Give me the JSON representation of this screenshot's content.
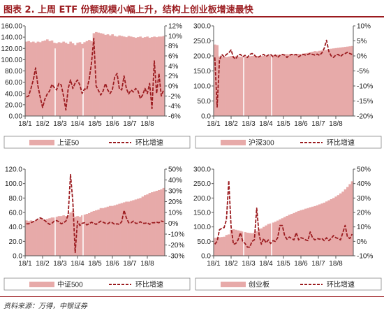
{
  "figure_title": "图表 2. 上周 ETF 份额规模小幅上升，结构上创业板增速最快",
  "source": "资料来源：万得，中银证券",
  "colors": {
    "bar": "#e7aaa9",
    "line": "#9b1b1f",
    "title": "#9b1b1f",
    "axis": "#555555"
  },
  "chart_data": [
    {
      "type": "bar",
      "x_ticks": [
        "18/1",
        "18/2",
        "18/3",
        "18/4",
        "18/5",
        "18/6",
        "18/7",
        "18/8"
      ],
      "ylim_left": [
        0,
        160
      ],
      "ylim_right": [
        -6,
        12
      ],
      "left_ticks": [
        "0.00",
        "20.00",
        "40.00",
        "60.00",
        "80.00",
        "100.00",
        "120.00",
        "140.00",
        "160.00"
      ],
      "right_ticks": [
        "-6%",
        "-4%",
        "-2%",
        "0%",
        "2%",
        "4%",
        "6%",
        "8%",
        "10%",
        "12%"
      ],
      "series": [
        {
          "name": "上证50",
          "type": "bar",
          "values": [
            132,
            133,
            131,
            132,
            130,
            132,
            131,
            133,
            134,
            136,
            133,
            134,
            130,
            129,
            131,
            130,
            132,
            130,
            128,
            132,
            129,
            126,
            130,
            131,
            128,
            131,
            133,
            135,
            133,
            147,
            149,
            148,
            147,
            146,
            144,
            145,
            143,
            145,
            142,
            141,
            143,
            142,
            141,
            140,
            142,
            141,
            140,
            139,
            140,
            141,
            139,
            140,
            141,
            139,
            140,
            141,
            140,
            141,
            141,
            142
          ]
        },
        {
          "name": "环比增速",
          "type": "line",
          "values": [
            -2.2,
            -2.0,
            -0.5,
            1.2,
            3.6,
            0.0,
            -2.3,
            -4.3,
            -2.6,
            -1.6,
            -1.0,
            0.3,
            -0.3,
            -0.8,
            0.5,
            0.2,
            -2.0,
            -4.8,
            -0.5,
            1.2,
            -0.5,
            0.6,
            1.2,
            0.2,
            -1.5,
            -0.6,
            -0.7,
            1.3,
            4.5,
            9.5,
            0.0,
            -0.9,
            -1.8,
            -1.0,
            0.5,
            -0.8,
            -1.5,
            -0.7,
            1.8,
            2.5,
            -0.6,
            -0.8,
            2.0,
            -0.5,
            -1.6,
            -0.8,
            -1.2,
            -0.5,
            -1.0,
            -2.5,
            -1.8,
            -0.5,
            -1.5,
            0.5,
            -4.5,
            5.0,
            -1.5,
            2.5,
            -2.0,
            -0.8
          ]
        }
      ]
    },
    {
      "type": "bar",
      "x_ticks": [
        "18/1",
        "18/2",
        "18/3",
        "18/4",
        "18/5",
        "18/6",
        "18/7",
        "18/8"
      ],
      "ylim_left": [
        0,
        300
      ],
      "ylim_right": [
        -20,
        10
      ],
      "left_ticks": [
        "0.0",
        "50.0",
        "100.0",
        "150.0",
        "200.0",
        "250.0",
        "300.0"
      ],
      "right_ticks": [
        "-20%",
        "-15%",
        "-10%",
        "-5%",
        "0%",
        "5%",
        "10%"
      ],
      "series": [
        {
          "name": "沪深300",
          "type": "bar",
          "values": [
            238,
            236,
            198,
            196,
            197,
            196,
            198,
            200,
            197,
            199,
            198,
            197,
            196,
            198,
            197,
            199,
            200,
            201,
            200,
            198,
            199,
            200,
            201,
            200,
            202,
            203,
            202,
            204,
            203,
            204,
            205,
            206,
            205,
            204,
            206,
            205,
            207,
            206,
            208,
            209,
            210,
            212,
            214,
            216,
            215,
            217,
            218,
            219,
            220,
            222,
            224,
            225,
            226,
            227,
            228,
            229,
            230,
            231,
            232,
            233
          ]
        },
        {
          "name": "环比增速",
          "type": "line",
          "values": [
            -0.5,
            -17.0,
            -1.5,
            0.5,
            -0.3,
            0.5,
            1.0,
            2.0,
            -0.5,
            -1.0,
            0.3,
            0.5,
            -0.3,
            0.2,
            -0.5,
            0.5,
            0.8,
            0.3,
            -0.5,
            -0.3,
            0.2,
            0.5,
            -0.2,
            0.3,
            0.5,
            -0.3,
            0.3,
            -0.5,
            0.2,
            0.5,
            0.3,
            -0.5,
            0.2,
            0.5,
            0.3,
            0.5,
            -0.3,
            0.2,
            0.5,
            0.3,
            0.5,
            0.8,
            0.5,
            0.3,
            0.6,
            0.2,
            1.0,
            2.5,
            5.2,
            1.5,
            0.0,
            -0.5,
            0.3,
            0.5,
            -0.2,
            0.5,
            0.8,
            1.2,
            0.8,
            0.5
          ]
        }
      ]
    },
    {
      "type": "bar",
      "x_ticks": [
        "18/1",
        "18/2",
        "18/3",
        "18/4",
        "18/5",
        "18/6",
        "18/7",
        "18/8"
      ],
      "ylim_left": [
        0,
        120
      ],
      "ylim_right": [
        -30,
        50
      ],
      "left_ticks": [
        "0.0",
        "20.0",
        "40.0",
        "60.0",
        "80.0",
        "100.0",
        "120.0"
      ],
      "right_ticks": [
        "-30%",
        "-20%",
        "-10%",
        "0%",
        "10%",
        "20%",
        "30%",
        "40%",
        "50%"
      ],
      "series": [
        {
          "name": "中证500",
          "type": "bar",
          "values": [
            49,
            48,
            49,
            48,
            49,
            50,
            51,
            51,
            50,
            51,
            52,
            53,
            53,
            54,
            55,
            55,
            56,
            55,
            56,
            60,
            62,
            54,
            55,
            54,
            56,
            57,
            58,
            59,
            61,
            62,
            63,
            64,
            66,
            66,
            67,
            68,
            69,
            69,
            70,
            71,
            72,
            73,
            74,
            75,
            75,
            76,
            77,
            78,
            79,
            80,
            82,
            84,
            85,
            87,
            88,
            89,
            90,
            91,
            92,
            94
          ]
        },
        {
          "name": "环比增速",
          "type": "line",
          "values": [
            -0.5,
            -0.5,
            0.5,
            1.5,
            2.5,
            4.0,
            5.0,
            4.0,
            2.5,
            0.5,
            -1.0,
            0.0,
            2.0,
            2.5,
            1.5,
            -0.5,
            0.5,
            2.0,
            8.0,
            45.0,
            20.0,
            -27.0,
            2.0,
            -2.0,
            0.0,
            0.5,
            -1.5,
            -0.5,
            1.0,
            0.0,
            -1.0,
            0.5,
            2.0,
            1.0,
            0.0,
            -0.5,
            1.0,
            0.5,
            -1.0,
            -0.5,
            -1.0,
            1.5,
            12.0,
            5.0,
            0.5,
            0.5,
            2.0,
            0.0,
            0.0,
            1.5,
            0.0,
            0.0,
            0.5,
            -1.0,
            0.5,
            0.5,
            1.0,
            0.5,
            2.0,
            1.5
          ]
        }
      ]
    },
    {
      "type": "bar",
      "x_ticks": [
        "18/1",
        "18/2",
        "18/3",
        "18/4",
        "18/5",
        "18/6",
        "18/7",
        "18/8"
      ],
      "ylim_left": [
        0,
        300
      ],
      "ylim_right": [
        -10,
        50
      ],
      "left_ticks": [
        "0.0",
        "50.0",
        "100.0",
        "150.0",
        "200.0",
        "250.0",
        "300.0"
      ],
      "right_ticks": [
        "-10%",
        "0%",
        "10%",
        "20%",
        "30%",
        "40%",
        "50%"
      ],
      "series": [
        {
          "name": "创业板",
          "type": "bar",
          "values": [
            62,
            63,
            64,
            65,
            66,
            72,
            74,
            90,
            92,
            90,
            88,
            86,
            84,
            82,
            80,
            79,
            78,
            80,
            85,
            92,
            95,
            100,
            105,
            110,
            112,
            115,
            118,
            122,
            126,
            130,
            134,
            138,
            142,
            145,
            148,
            152,
            155,
            158,
            160,
            163,
            165,
            168,
            170,
            172,
            175,
            178,
            181,
            184,
            188,
            192,
            196,
            200,
            205,
            210,
            216,
            222,
            230,
            238,
            248,
            258
          ]
        },
        {
          "name": "环比增速",
          "type": "line",
          "values": [
            -2.0,
            0.0,
            8.0,
            9.0,
            9.5,
            15.0,
            42.0,
            10.0,
            -2.0,
            -1.5,
            1.0,
            6.0,
            0.0,
            -1.5,
            -4.0,
            -4.0,
            0.0,
            1.0,
            23.0,
            5.0,
            -2.0,
            2.0,
            -1.0,
            1.0,
            -1.5,
            0.5,
            0.0,
            2.5,
            11.0,
            11.0,
            4.0,
            1.5,
            3.0,
            2.0,
            1.0,
            6.0,
            1.0,
            2.5,
            2.0,
            1.0,
            0.5,
            6.5,
            2.5,
            1.0,
            2.0,
            1.5,
            2.0,
            0.5,
            2.5,
            0.5,
            2.0,
            4.0,
            2.5,
            2.0,
            1.0,
            6.0,
            11.0,
            3.0,
            2.0,
            5.0
          ]
        }
      ]
    }
  ]
}
